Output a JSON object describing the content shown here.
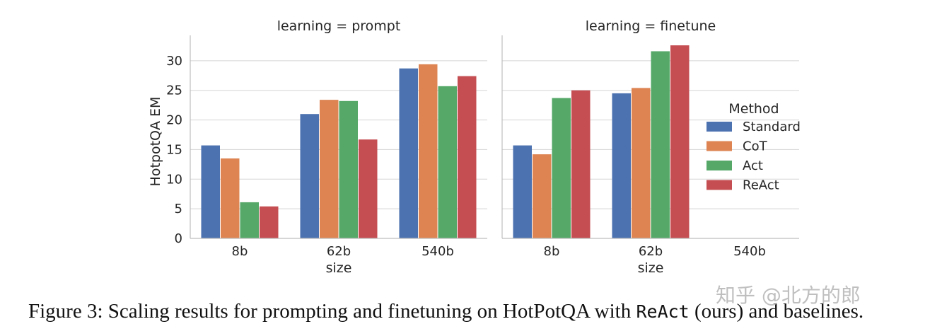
{
  "chart_data": {
    "type": "bar",
    "ylabel": "HotpotQA EM",
    "xlabel": "size",
    "ylim": [
      0,
      35
    ],
    "yticks": [
      0,
      5,
      10,
      15,
      20,
      25,
      30
    ],
    "grid": true,
    "legend_title": "Method",
    "legend_position": "right",
    "categories": [
      "8b",
      "62b",
      "540b"
    ],
    "series_colors": {
      "Standard": "#4c72b0",
      "CoT": "#dd8452",
      "Act": "#55a868",
      "ReAct": "#c44e52"
    },
    "panels": [
      {
        "title": "learning = prompt",
        "series": [
          {
            "name": "Standard",
            "values": [
              15.7,
              21.0,
              28.7
            ]
          },
          {
            "name": "CoT",
            "values": [
              13.5,
              23.4,
              29.4
            ]
          },
          {
            "name": "Act",
            "values": [
              6.1,
              23.2,
              25.7
            ]
          },
          {
            "name": "ReAct",
            "values": [
              5.4,
              16.7,
              27.4
            ]
          }
        ]
      },
      {
        "title": "learning = finetune",
        "series": [
          {
            "name": "Standard",
            "values": [
              15.7,
              24.5,
              null
            ]
          },
          {
            "name": "CoT",
            "values": [
              14.2,
              25.4,
              null
            ]
          },
          {
            "name": "Act",
            "values": [
              23.7,
              31.6,
              null
            ]
          },
          {
            "name": "ReAct",
            "values": [
              25.0,
              32.6,
              null
            ]
          }
        ]
      }
    ]
  },
  "caption": {
    "prefix": "Figure 3: Scaling results for prompting and finetuning on HotPotQA with ",
    "method": "ReAct",
    "suffix": " (ours) and baselines."
  },
  "watermark": "知乎 @北方的郎"
}
